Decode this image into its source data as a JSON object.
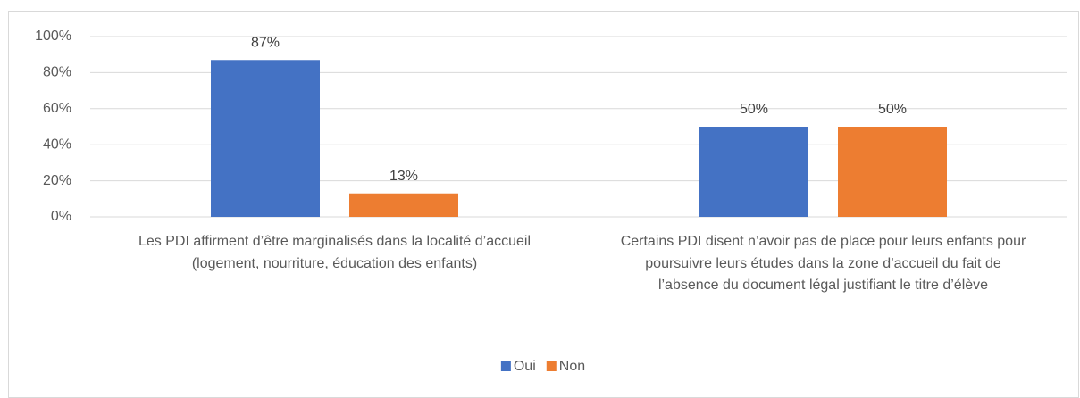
{
  "chart_data": {
    "type": "bar",
    "categories": [
      "Les PDI affirment d’être marginalisés dans la localité d’accueil (logement, nourriture, éducation des enfants)",
      "Certains PDI disent n’avoir pas de place pour leurs enfants pour poursuivre leurs études dans la zone d’accueil du fait de l’absence du document légal justifiant le titre d’élève"
    ],
    "series": [
      {
        "name": "Oui",
        "color": "#4472c4",
        "values": [
          87,
          50
        ],
        "value_labels": [
          "87%",
          "50%"
        ]
      },
      {
        "name": "Non",
        "color": "#ed7d31",
        "values": [
          13,
          50
        ],
        "value_labels": [
          "13%",
          "50%"
        ]
      }
    ],
    "ylim": [
      0,
      100
    ],
    "yticks": [
      {
        "value": 0,
        "label": "0%"
      },
      {
        "value": 20,
        "label": "20%"
      },
      {
        "value": 40,
        "label": "40%"
      },
      {
        "value": 60,
        "label": "60%"
      },
      {
        "value": 80,
        "label": "80%"
      },
      {
        "value": 100,
        "label": "100%"
      }
    ],
    "grid": true,
    "legend": "bottom"
  }
}
